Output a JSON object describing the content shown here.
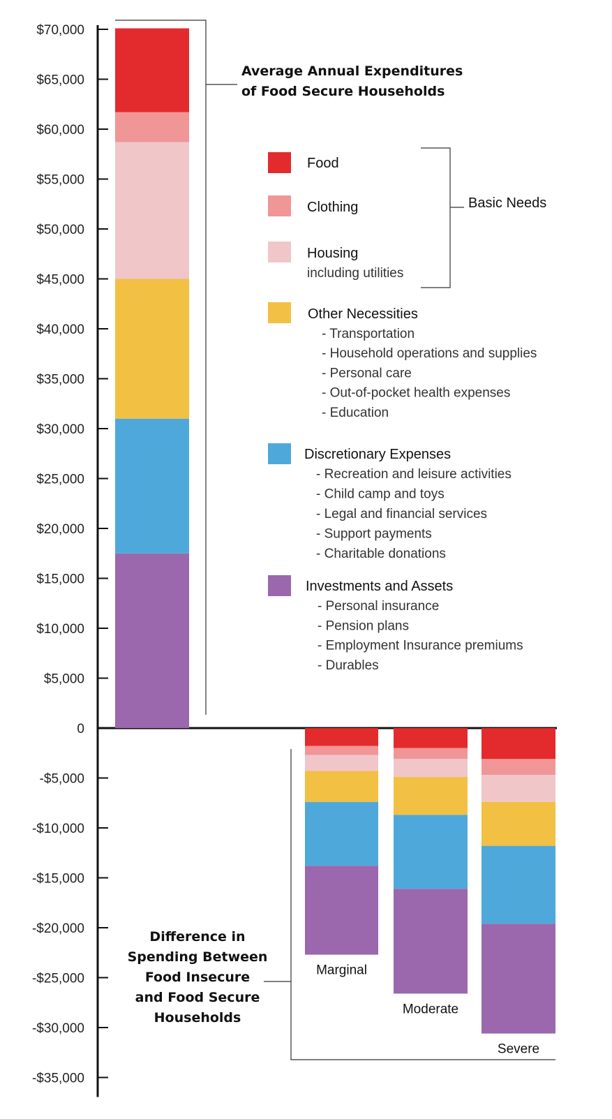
{
  "chart_data": {
    "type": "bar",
    "stacked": true,
    "title": "Average Annual Expenditures of Food Secure Households",
    "title_lines": [
      "Average Annual Expenditures",
      "of Food Secure Households"
    ],
    "difference_title": "Difference in Spending Between Food Insecure and Food Secure Households",
    "difference_title_lines": [
      "Difference in",
      "Spending Between",
      "Food Insecure",
      "and Food Secure",
      "Households"
    ],
    "ylim": [
      -35000,
      70000
    ],
    "y_ticks": [
      {
        "value": 70000,
        "label": "$70,000"
      },
      {
        "value": 65000,
        "label": "$65,000"
      },
      {
        "value": 60000,
        "label": "$60,000"
      },
      {
        "value": 55000,
        "label": "$55,000"
      },
      {
        "value": 50000,
        "label": "$50,000"
      },
      {
        "value": 45000,
        "label": "$45,000"
      },
      {
        "value": 40000,
        "label": "$40,000"
      },
      {
        "value": 35000,
        "label": "$35,000"
      },
      {
        "value": 30000,
        "label": "$30,000"
      },
      {
        "value": 25000,
        "label": "$25,000"
      },
      {
        "value": 20000,
        "label": "$20,000"
      },
      {
        "value": 15000,
        "label": "$15,000"
      },
      {
        "value": 10000,
        "label": "$10,000"
      },
      {
        "value": 5000,
        "label": "$5,000"
      },
      {
        "value": 0,
        "label": "0"
      },
      {
        "value": -5000,
        "label": "-$5,000"
      },
      {
        "value": -10000,
        "label": "-$10,000"
      },
      {
        "value": -15000,
        "label": "-$15,000"
      },
      {
        "value": -20000,
        "label": "-$20,000"
      },
      {
        "value": -25000,
        "label": "-$25,000"
      },
      {
        "value": -30000,
        "label": "-$30,000"
      },
      {
        "value": -35000,
        "label": "-$35,000"
      }
    ],
    "legend": {
      "group_label": "Basic Needs",
      "entries": [
        {
          "key": "food",
          "label": "Food",
          "color": "#e32b2d",
          "sub": [],
          "in_group": true
        },
        {
          "key": "clothing",
          "label": "Clothing",
          "color": "#f09697",
          "sub": [],
          "in_group": true
        },
        {
          "key": "housing",
          "label": "Housing",
          "color": "#f0c6c9",
          "note": "including utilities",
          "sub": [],
          "in_group": true
        },
        {
          "key": "other",
          "label": "Other Necessities",
          "color": "#f2c043",
          "sub": [
            "- Transportation",
            "- Household operations and supplies",
            "- Personal care",
            "- Out-of-pocket health expenses",
            "- Education"
          ]
        },
        {
          "key": "discretionary",
          "label": "Discretionary Expenses",
          "color": "#4ea9da",
          "sub": [
            "- Recreation and leisure activities",
            "- Child camp and toys",
            "- Legal and financial services",
            "- Support payments",
            "- Charitable donations"
          ]
        },
        {
          "key": "investments",
          "label": "Investments and Assets",
          "color": "#9b67ad",
          "sub": [
            "- Personal insurance",
            "- Pension plans",
            "- Employment Insurance premiums",
            "- Durables"
          ]
        }
      ]
    },
    "series_order": [
      "investments",
      "discretionary",
      "other",
      "housing",
      "clothing",
      "food"
    ],
    "bars": [
      {
        "category": "",
        "label": "",
        "values": {
          "investments": 17500,
          "discretionary": 13500,
          "other": 14000,
          "housing": 13700,
          "clothing": 3000,
          "food": 8400
        }
      },
      {
        "category": "Marginal",
        "label": "Marginal",
        "values": {
          "food": -1800,
          "clothing": -900,
          "housing": -1600,
          "other": -3100,
          "discretionary": -6400,
          "investments": -8900
        }
      },
      {
        "category": "Moderate",
        "label": "Moderate",
        "values": {
          "food": -2000,
          "clothing": -1100,
          "housing": -1800,
          "other": -3800,
          "discretionary": -7400,
          "investments": -10500
        }
      },
      {
        "category": "Severe",
        "label": "Severe",
        "values": {
          "food": -3100,
          "clothing": -1600,
          "housing": -2700,
          "other": -4400,
          "discretionary": -7800,
          "investments": -11000
        }
      }
    ]
  }
}
